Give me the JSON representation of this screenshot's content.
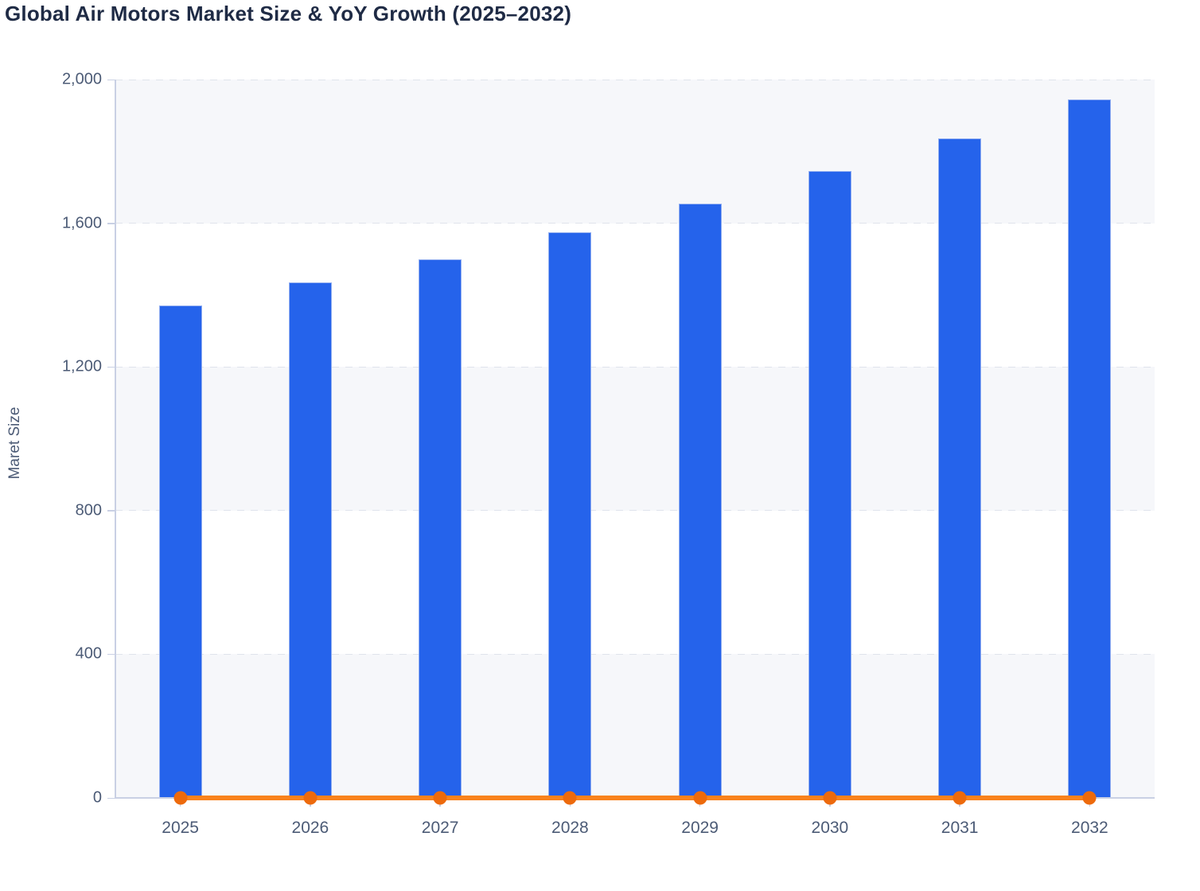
{
  "header": {
    "title": "Global Air Motors Market Size & YoY Growth (2025–2032)"
  },
  "chart_data": {
    "type": "bar",
    "title": "Global Air Motors Market Size & YoY Growth (2025–2032)",
    "categories": [
      "2025",
      "2026",
      "2027",
      "2028",
      "2029",
      "2030",
      "2031",
      "2032"
    ],
    "series": [
      {
        "name": "Market Size",
        "type": "bar",
        "color": "#2563eb",
        "values": [
          1370,
          1435,
          1500,
          1575,
          1655,
          1745,
          1835,
          1945
        ]
      },
      {
        "name": "YoY Growth",
        "type": "line",
        "color": "#f9821c",
        "point_color": "#ed6a0c",
        "values": [
          0,
          0,
          0,
          0,
          0,
          0,
          0,
          0
        ]
      }
    ],
    "xlabel": "",
    "ylabel": "Maret Size",
    "ylim": [
      0,
      2000
    ],
    "yticks": [
      0,
      400,
      800,
      1200,
      1600,
      2000
    ],
    "ytick_labels": [
      "0",
      "400",
      "800",
      "1,200",
      "1,600",
      "2,000"
    ],
    "grid": "horizontal-dashed",
    "legend": "none",
    "plot_band_colors": [
      "#f6f7fa",
      "#ffffff"
    ],
    "bar_color": "#2563eb",
    "bar_border_color": "#93aff0",
    "gridline_color": "#dfe3ec",
    "axis_color": "#c9d0e4",
    "title_color": "#1f2b45",
    "tick_label_color": "#4c5b76"
  }
}
